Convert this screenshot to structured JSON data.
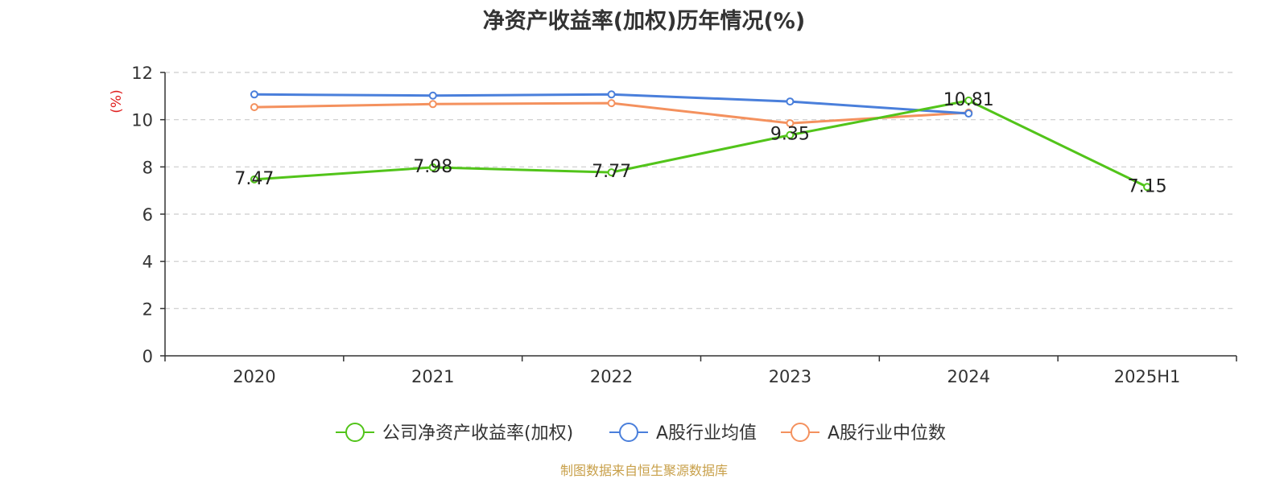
{
  "chart_data": {
    "type": "line",
    "title": "净资产收益率(加权)历年情况(%)",
    "ylabel": "(%)",
    "xlabel": "",
    "categories": [
      "2020",
      "2021",
      "2022",
      "2023",
      "2024",
      "2025H1"
    ],
    "ylim": [
      0,
      12
    ],
    "yticks": [
      0,
      2,
      4,
      6,
      8,
      10,
      12
    ],
    "grid": true,
    "legend_position": "bottom",
    "series": [
      {
        "name": "公司净资产收益率(加权)",
        "color": "#52c41a",
        "values": [
          7.47,
          7.98,
          7.77,
          9.35,
          10.81,
          7.15
        ],
        "labels": [
          "7.47",
          "7.98",
          "7.77",
          "9.35",
          "10.81",
          "7.15"
        ]
      },
      {
        "name": "A股行业均值",
        "color": "#4a7fdb",
        "values": [
          11.07,
          11.02,
          11.07,
          10.77,
          10.26,
          null
        ]
      },
      {
        "name": "A股行业中位数",
        "color": "#f4915e",
        "values": [
          10.53,
          10.66,
          10.7,
          9.85,
          10.3,
          null
        ]
      }
    ],
    "ylabel_color": "#e02020"
  },
  "source": {
    "text": "制图数据来自恒生聚源数据库",
    "color": "#c8a04a"
  }
}
